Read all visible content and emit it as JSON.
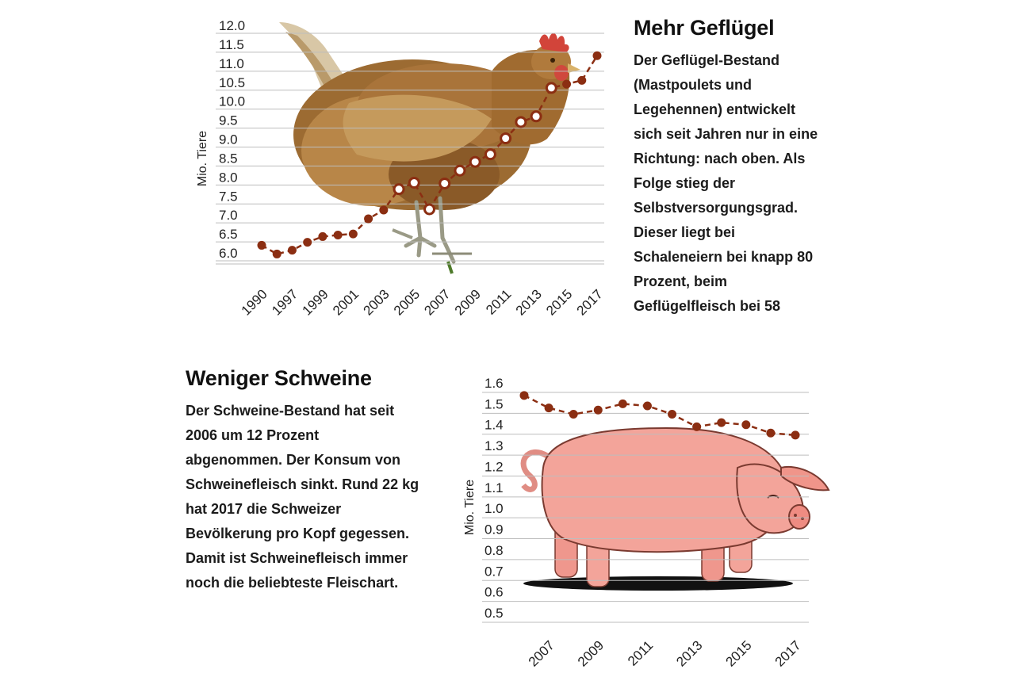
{
  "poultry_section": {
    "heading": "Mehr Geflügel",
    "lines": [
      "Der Geflügel-Bestand",
      "(Mastpoulets und",
      "Legehennen) entwickelt",
      "sich seit Jahren nur in eine",
      "Richtung: nach oben. Als",
      "Folge stieg der",
      "Selbstversorgungsgrad.",
      "Dieser liegt bei",
      "Schaleneiern bei knapp 80",
      "Prozent, beim",
      "Geflügelfleisch bei 58"
    ]
  },
  "pig_section": {
    "heading": "Weniger Schweine",
    "lines": [
      "Der Schweine-Bestand hat seit",
      "2006 um 12 Prozent",
      "abgenommen. Der Konsum von",
      "Schweinefleisch sinkt. Rund 22 kg",
      "hat 2017 die Schweizer",
      "Bevölkerung pro Kopf gegessen.",
      "Damit ist Schweinefleisch immer",
      "noch die beliebteste Fleischart."
    ]
  },
  "colors": {
    "series_line": "#8b2e12",
    "gridline": "#bdbdbd",
    "hen_body": "#9c6b32",
    "pig_body": "#f3a49a"
  },
  "illustrations": {
    "poultry_chart_background": "hen-illustration",
    "pig_chart_background": "pig-illustration"
  },
  "chart_data": [
    {
      "type": "line",
      "ylabel": "Mio. Tiere",
      "xlabel": "",
      "ylim": [
        5.8,
        12.2
      ],
      "yticks": [
        "12.0",
        "11.5",
        "11.0",
        "10.5",
        "10.0",
        "9.5",
        "9.0",
        "8.5",
        "8.0",
        "7.5",
        "7.0",
        "6.5",
        "6.0"
      ],
      "xtick_labels": [
        "1990",
        "1997",
        "1999",
        "2001",
        "2003",
        "2005",
        "2007",
        "2009",
        "2011",
        "2013",
        "2015",
        "2017"
      ],
      "x": [
        "1990",
        "1996",
        "1997",
        "1998",
        "1999",
        "2000",
        "2001",
        "2002",
        "2003",
        "2004",
        "2005",
        "2006",
        "2007",
        "2008",
        "2009",
        "2010",
        "2011",
        "2012",
        "2013",
        "2014",
        "2015",
        "2016",
        "2017"
      ],
      "values": [
        6.2,
        5.97,
        6.07,
        6.28,
        6.43,
        6.47,
        6.5,
        6.9,
        7.13,
        7.68,
        7.85,
        7.15,
        7.83,
        8.17,
        8.4,
        8.6,
        9.02,
        9.45,
        9.6,
        10.35,
        10.45,
        10.55,
        11.2
      ],
      "grid": true
    },
    {
      "type": "line",
      "ylabel": "Mio. Tiere",
      "xlabel": "",
      "ylim": [
        0.45,
        1.62
      ],
      "yticks": [
        "1.6",
        "1.5",
        "1.4",
        "1.3",
        "1.2",
        "1.1",
        "1.0",
        "0.9",
        "0.8",
        "0.7",
        "0.6",
        "0.5"
      ],
      "xtick_labels": [
        "2007",
        "2009",
        "2011",
        "2013",
        "2015",
        "2017"
      ],
      "x": [
        "2006",
        "2007",
        "2008",
        "2009",
        "2010",
        "2011",
        "2012",
        "2013",
        "2014",
        "2015",
        "2016",
        "2017"
      ],
      "values": [
        1.54,
        1.48,
        1.45,
        1.47,
        1.5,
        1.49,
        1.45,
        1.39,
        1.41,
        1.4,
        1.36,
        1.35
      ],
      "grid": true
    }
  ]
}
